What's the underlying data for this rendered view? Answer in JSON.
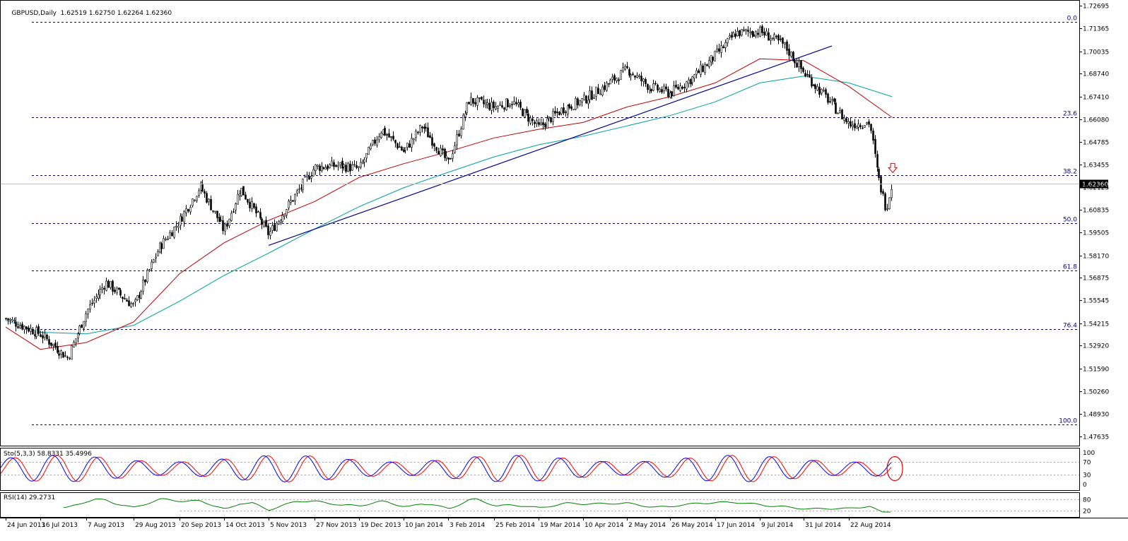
{
  "header": {
    "symbol": "GBPUSD,Daily",
    "ohlc": "1.62519 1.62750 1.62264 1.62360"
  },
  "colors": {
    "fib_line": "#000080",
    "ma_fast": "#c00000",
    "ma_slow": "#00a0a0",
    "trendline": "#00008b",
    "current_price_bg": "#000000",
    "stoch_main": "#0000ff",
    "stoch_signal": "#ff0000",
    "rsi_line": "#008000",
    "annotation": "#e00000"
  },
  "chart_data": [
    {
      "type": "candlestick",
      "title": "GBPUSD,Daily",
      "y_axis_ticks": [
        "1.72695",
        "1.71365",
        "1.70035",
        "1.68740",
        "1.67410",
        "1.66080",
        "1.64785",
        "1.63455",
        "1.62125",
        "1.60835",
        "1.59505",
        "1.58170",
        "1.56875",
        "1.55545",
        "1.54215",
        "1.52920",
        "1.51590",
        "1.50260",
        "1.48930",
        "1.47635"
      ],
      "ylim": [
        1.47635,
        1.72695
      ],
      "x_axis_ticks": [
        "24 Jun 2013",
        "16 Jul 2013",
        "7 Aug 2013",
        "29 Aug 2013",
        "20 Sep 2013",
        "14 Oct 2013",
        "5 Nov 2013",
        "27 Nov 2013",
        "19 Dec 2013",
        "10 Jan 2014",
        "3 Feb 2014",
        "25 Feb 2014",
        "19 Mar 2014",
        "10 Apr 2014",
        "2 May 2014",
        "26 May 2014",
        "17 Jun 2014",
        "9 Jul 2014",
        "31 Jul 2014",
        "22 Aug 2014"
      ],
      "current_price": "1.62360",
      "fibonacci_levels": [
        {
          "label": "0.0",
          "price": 1.7174
        },
        {
          "label": "23.6",
          "price": 1.6622
        },
        {
          "label": "38.2",
          "price": 1.6282
        },
        {
          "label": "50.0",
          "price": 1.6005
        },
        {
          "label": "61.8",
          "price": 1.5729
        },
        {
          "label": "76.4",
          "price": 1.5387
        },
        {
          "label": "100.0",
          "price": 1.4834
        }
      ],
      "trend_line": {
        "start": [
          "5 Nov 2013",
          1.5875
        ],
        "end": [
          "31 Jul 2014",
          1.7035
        ]
      },
      "price_anchors": [
        [
          "24 Jun 2013",
          1.545
        ],
        [
          "16 Jul 2013",
          1.536
        ],
        [
          "29 Jul 2013",
          1.522
        ],
        [
          "7 Aug 2013",
          1.549
        ],
        [
          "16 Aug 2013",
          1.566
        ],
        [
          "29 Aug 2013",
          1.552
        ],
        [
          "10 Sep 2013",
          1.586
        ],
        [
          "20 Sep 2013",
          1.602
        ],
        [
          "1 Oct 2013",
          1.622
        ],
        [
          "14 Oct 2013",
          1.596
        ],
        [
          "22 Oct 2013",
          1.621
        ],
        [
          "5 Nov 2013",
          1.594
        ],
        [
          "15 Nov 2013",
          1.612
        ],
        [
          "27 Nov 2013",
          1.633
        ],
        [
          "9 Dec 2013",
          1.634
        ],
        [
          "19 Dec 2013",
          1.632
        ],
        [
          "30 Dec 2013",
          1.655
        ],
        [
          "10 Jan 2014",
          1.642
        ],
        [
          "20 Jan 2014",
          1.657
        ],
        [
          "3 Feb 2014",
          1.635
        ],
        [
          "13 Feb 2014",
          1.672
        ],
        [
          "25 Feb 2014",
          1.668
        ],
        [
          "6 Mar 2014",
          1.671
        ],
        [
          "19 Mar 2014",
          1.656
        ],
        [
          "31 Mar 2014",
          1.667
        ],
        [
          "10 Apr 2014",
          1.672
        ],
        [
          "22 Apr 2014",
          1.681
        ],
        [
          "2 May 2014",
          1.69
        ],
        [
          "14 May 2014",
          1.68
        ],
        [
          "26 May 2014",
          1.676
        ],
        [
          "6 Jun 2014",
          1.685
        ],
        [
          "17 Jun 2014",
          1.698
        ],
        [
          "27 Jun 2014",
          1.711
        ],
        [
          "9 Jul 2014",
          1.712
        ],
        [
          "21 Jul 2014",
          1.704
        ],
        [
          "31 Jul 2014",
          1.688
        ],
        [
          "12 Aug 2014",
          1.672
        ],
        [
          "22 Aug 2014",
          1.658
        ],
        [
          "1 Sep 2014",
          1.659
        ],
        [
          "5 Sep 2014",
          1.628
        ],
        [
          "9 Sep 2014",
          1.609
        ],
        [
          "12 Sep 2014",
          1.624
        ]
      ],
      "moving_average_fast_points": [
        [
          "24 Jun 2013",
          1.54
        ],
        [
          "16 Jul 2013",
          1.527
        ],
        [
          "7 Aug 2013",
          1.531
        ],
        [
          "29 Aug 2013",
          1.543
        ],
        [
          "20 Sep 2013",
          1.571
        ],
        [
          "14 Oct 2013",
          1.589
        ],
        [
          "5 Nov 2013",
          1.602
        ],
        [
          "27 Nov 2013",
          1.613
        ],
        [
          "19 Dec 2013",
          1.627
        ],
        [
          "10 Jan 2014",
          1.635
        ],
        [
          "3 Feb 2014",
          1.642
        ],
        [
          "25 Feb 2014",
          1.65
        ],
        [
          "19 Mar 2014",
          1.655
        ],
        [
          "10 Apr 2014",
          1.659
        ],
        [
          "2 May 2014",
          1.668
        ],
        [
          "26 May 2014",
          1.674
        ],
        [
          "17 Jun 2014",
          1.682
        ],
        [
          "9 Jul 2014",
          1.696
        ],
        [
          "31 Jul 2014",
          1.695
        ],
        [
          "22 Aug 2014",
          1.68
        ],
        [
          "12 Sep 2014",
          1.662
        ]
      ],
      "moving_average_slow_points": [
        [
          "24 Jun 2013",
          1.544
        ],
        [
          "16 Jul 2013",
          1.537
        ],
        [
          "7 Aug 2013",
          1.536
        ],
        [
          "29 Aug 2013",
          1.541
        ],
        [
          "20 Sep 2013",
          1.555
        ],
        [
          "14 Oct 2013",
          1.57
        ],
        [
          "5 Nov 2013",
          1.583
        ],
        [
          "27 Nov 2013",
          1.597
        ],
        [
          "19 Dec 2013",
          1.61
        ],
        [
          "10 Jan 2014",
          1.621
        ],
        [
          "3 Feb 2014",
          1.63
        ],
        [
          "25 Feb 2014",
          1.639
        ],
        [
          "19 Mar 2014",
          1.646
        ],
        [
          "10 Apr 2014",
          1.651
        ],
        [
          "2 May 2014",
          1.657
        ],
        [
          "26 May 2014",
          1.663
        ],
        [
          "17 Jun 2014",
          1.671
        ],
        [
          "9 Jul 2014",
          1.682
        ],
        [
          "31 Jul 2014",
          1.686
        ],
        [
          "22 Aug 2014",
          1.682
        ],
        [
          "12 Sep 2014",
          1.674
        ]
      ],
      "annotation": "red down arrow above the latest candles, below the 38.2 level"
    },
    {
      "type": "line",
      "title": "Sto(5,3,3) 58.8331 35.4996",
      "y_axis_ticks": [
        "100",
        "70",
        "30",
        "0"
      ],
      "ylim": [
        0,
        100
      ],
      "levels": [
        70,
        30
      ],
      "series": [
        {
          "name": "Sto(5,3,3)",
          "current": 58.8331
        },
        {
          "name": "Signal",
          "current": 35.4996
        }
      ],
      "annotation": "red circle around the latest stochastic values"
    },
    {
      "type": "line",
      "title": "RSI(14) 29.2731",
      "y_axis_ticks": [
        "80",
        "20"
      ],
      "ylim": [
        0,
        100
      ],
      "levels": [
        80,
        20
      ],
      "series": [
        {
          "name": "RSI(14)",
          "current": 29.2731
        }
      ]
    }
  ]
}
